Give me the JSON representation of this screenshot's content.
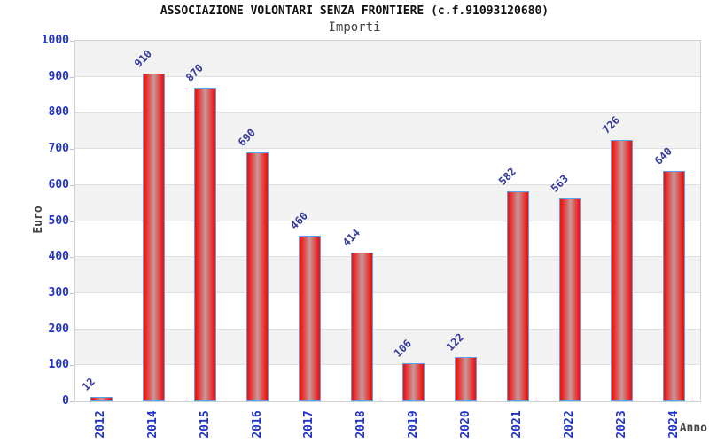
{
  "header": {
    "title": "ASSOCIAZIONE VOLONTARI SENZA FRONTIERE (c.f.91093120680)",
    "subtitle": "Importi"
  },
  "chart_data": {
    "type": "bar",
    "title": "ASSOCIAZIONE VOLONTARI SENZA FRONTIERE (c.f.91093120680)",
    "subtitle": "Importi",
    "xlabel": "Anno",
    "ylabel": "Euro",
    "categories": [
      "2012",
      "2014",
      "2015",
      "2016",
      "2017",
      "2018",
      "2019",
      "2020",
      "2021",
      "2022",
      "2023",
      "2024"
    ],
    "values": [
      12,
      910,
      870,
      690,
      460,
      414,
      106,
      122,
      582,
      563,
      726,
      640
    ],
    "ylim": [
      0,
      1000
    ],
    "ytick_step": 100,
    "yticks": [
      0,
      100,
      200,
      300,
      400,
      500,
      600,
      700,
      800,
      900,
      1000
    ],
    "legend": "none",
    "grid": "horizontal-bands-alternating",
    "bar_label_rotation_deg": -45,
    "x_label_rotation_deg": -90,
    "colors": {
      "bar_fill_edge": "#f01414",
      "bar_fill_center": "#c79a9a",
      "bar_border": "#5aa2e8",
      "axis_text": "#2233cc",
      "value_label": "#333a99",
      "band_gray": "#f2f2f2",
      "band_white": "#ffffff",
      "gridline": "#e0e0e0",
      "plot_border": "#d0d0d0",
      "tick": "#b9b9f0",
      "title_text": "#111111",
      "axis_title_text": "#444444"
    }
  }
}
